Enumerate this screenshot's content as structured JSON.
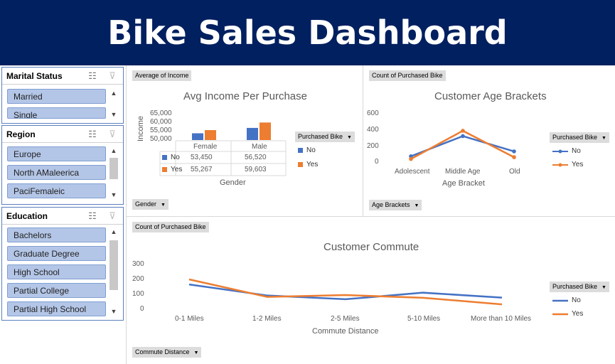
{
  "header": {
    "title": "Bike Sales Dashboard"
  },
  "slicers": {
    "marital": {
      "title": "Marital Status",
      "items": [
        "Married",
        "Single"
      ]
    },
    "region": {
      "title": "Region",
      "items": [
        "Europe",
        "North AMaleerica",
        "PaciFemaleic"
      ]
    },
    "education": {
      "title": "Education",
      "items": [
        "Bachelors",
        "Graduate Degree",
        "High School",
        "Partial College",
        "Partial High School"
      ]
    }
  },
  "income_chart": {
    "field_button": "Average of Income",
    "filter_button": "Gender",
    "legend_title": "Purchased Bike",
    "legend_items": [
      "No",
      "Yes"
    ],
    "ylabel": "Income",
    "xlabel": "Gender",
    "table": {
      "header": [
        "Female",
        "Male"
      ],
      "rows": [
        {
          "label": "No",
          "values": [
            "53,450",
            "56,520"
          ]
        },
        {
          "label": "Yes",
          "values": [
            "55,267",
            "59,603"
          ]
        }
      ]
    }
  },
  "age_chart": {
    "field_button": "Count of Purchased Bike",
    "filter_button": "Age Brackets",
    "legend_title": "Purchased Bike",
    "legend_items": [
      "No",
      "Yes"
    ]
  },
  "commute_chart": {
    "field_button": "Count of Purchased Bike",
    "filter_button": "Commute Distance",
    "legend_title": "Purchased Bike",
    "legend_items": [
      "No",
      "Yes"
    ]
  },
  "colors": {
    "no": "#4472c4",
    "yes": "#ed7d31",
    "header": "#002060"
  },
  "chart_data": [
    {
      "type": "bar",
      "title": "Avg Income Per Purchase",
      "categories": [
        "Female",
        "Male"
      ],
      "series": [
        {
          "name": "No",
          "values": [
            53450,
            56520
          ]
        },
        {
          "name": "Yes",
          "values": [
            55267,
            59603
          ]
        }
      ],
      "xlabel": "Gender",
      "ylabel": "Income",
      "ylim": [
        50000,
        65000
      ],
      "yticks": [
        "65,000",
        "60,000",
        "55,000",
        "50,000"
      ]
    },
    {
      "type": "line",
      "title": "Customer Age Brackets",
      "categories": [
        "Adolescent",
        "Middle Age",
        "Old"
      ],
      "series": [
        {
          "name": "No",
          "values": [
            71,
            318,
            131
          ]
        },
        {
          "name": "Yes",
          "values": [
            38,
            383,
            60
          ]
        }
      ],
      "xlabel": "Age Bracket",
      "ylabel": "",
      "ylim": [
        0,
        600
      ],
      "yticks": [
        "600",
        "400",
        "200",
        "0"
      ]
    },
    {
      "type": "line",
      "title": "Customer Commute",
      "categories": [
        "0-1 Miles",
        "1-2 Miles",
        "2-5 Miles",
        "5-10 Miles",
        "More than 10 Miles"
      ],
      "series": [
        {
          "name": "No",
          "values": [
            166,
            92,
            67,
            111,
            78
          ]
        },
        {
          "name": "Yes",
          "values": [
            200,
            83,
            95,
            77,
            33
          ]
        }
      ],
      "xlabel": "Commute Distance",
      "ylabel": "",
      "ylim": [
        0,
        300
      ],
      "yticks": [
        "300",
        "200",
        "100",
        "0"
      ]
    }
  ]
}
